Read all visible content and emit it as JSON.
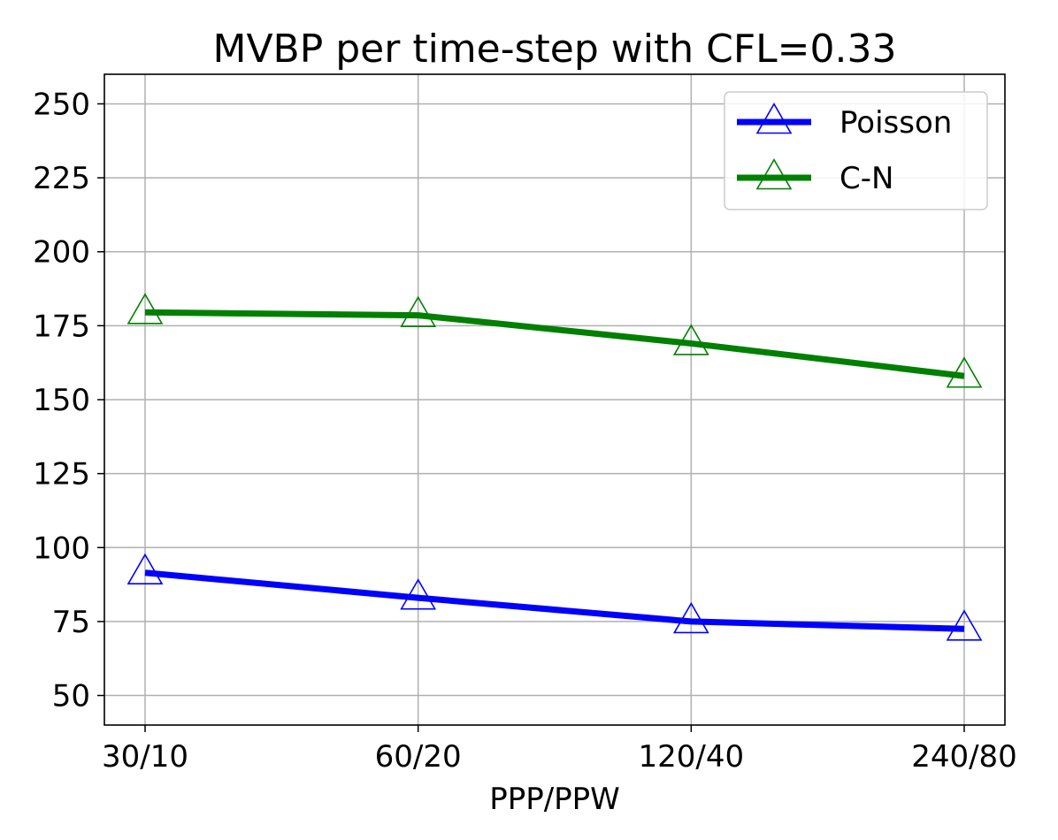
{
  "chart_data": {
    "type": "line",
    "title": "MVBP per time-step with CFL=0.33",
    "xlabel": "PPP/PPW",
    "ylabel": "",
    "categories": [
      "30/10",
      "60/20",
      "120/40",
      "240/80"
    ],
    "ylim": [
      40,
      260
    ],
    "yticks": [
      50,
      75,
      100,
      125,
      150,
      175,
      200,
      225,
      250
    ],
    "grid": true,
    "legend_position": "top-right",
    "marker": "triangle-open",
    "series": [
      {
        "name": "Poisson",
        "color": "#0000ff",
        "values": [
          91.5,
          83,
          75,
          72.5
        ]
      },
      {
        "name": "C-N",
        "color": "#008000",
        "values": [
          179.5,
          178.5,
          169,
          158
        ]
      }
    ]
  }
}
